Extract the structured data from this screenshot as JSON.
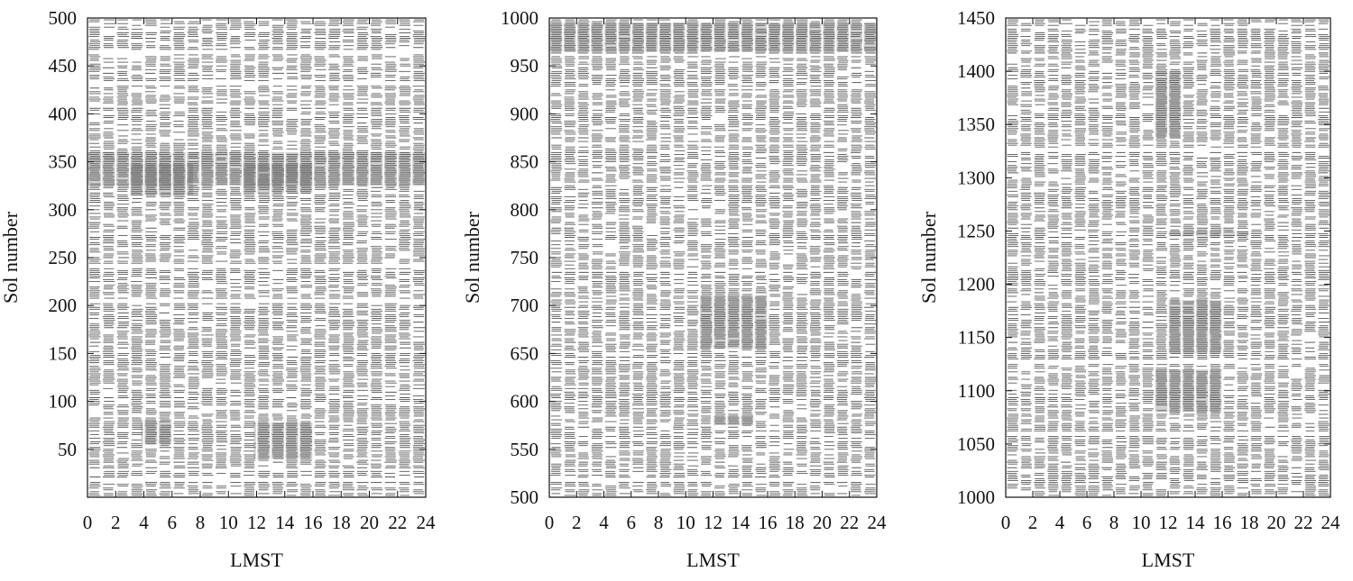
{
  "chart_data": [
    {
      "type": "heatmap",
      "xlabel": "LMST",
      "ylabel": "Sol number",
      "xlim": [
        0,
        24
      ],
      "ylim": [
        0,
        500
      ],
      "x_ticks": [
        0,
        2,
        4,
        6,
        8,
        10,
        12,
        14,
        16,
        18,
        20,
        22,
        24
      ],
      "y_ticks": [
        50,
        100,
        150,
        200,
        250,
        300,
        350,
        400,
        450,
        500
      ],
      "fill_color": "#000000",
      "data_gaps_sol": [
        [
          17,
          20
        ],
        [
          27,
          30
        ],
        [
          203,
          206
        ],
        [
          240,
          243
        ],
        [
          407,
          409
        ],
        [
          430,
          433
        ],
        [
          462,
          466
        ]
      ],
      "dense_coverage": [
        {
          "sol": [
            55,
            80
          ],
          "lmst": [
            3.8,
            6.0
          ]
        },
        {
          "sol": [
            40,
            78
          ],
          "lmst": [
            11.8,
            16.0
          ]
        },
        {
          "sol": [
            315,
            348
          ],
          "lmst": [
            3.0,
            7.5
          ]
        },
        {
          "sol": [
            318,
            348
          ],
          "lmst": [
            11.0,
            16.0
          ]
        },
        {
          "sol": [
            325,
            360
          ],
          "lmst": [
            0,
            24
          ]
        }
      ]
    },
    {
      "type": "heatmap",
      "xlabel": "LMST",
      "ylabel": "Sol number",
      "xlim": [
        0,
        24
      ],
      "ylim": [
        500,
        1000
      ],
      "x_ticks": [
        0,
        2,
        4,
        6,
        8,
        10,
        12,
        14,
        16,
        18,
        20,
        22,
        24
      ],
      "y_ticks": [
        500,
        550,
        600,
        650,
        700,
        750,
        800,
        850,
        900,
        950,
        1000
      ],
      "fill_color": "#000000",
      "data_gaps_sol": [
        [
          517,
          520
        ],
        [
          558,
          560
        ],
        [
          643,
          646
        ],
        [
          735,
          738
        ],
        [
          826,
          828
        ],
        [
          868,
          870
        ],
        [
          925,
          928
        ],
        [
          960,
          962
        ]
      ],
      "dense_coverage": [
        {
          "sol": [
            965,
            995
          ],
          "lmst": [
            0,
            24
          ]
        },
        {
          "sol": [
            655,
            710
          ],
          "lmst": [
            11.0,
            16.0
          ]
        },
        {
          "sol": [
            575,
            585
          ],
          "lmst": [
            12.0,
            15.0
          ]
        }
      ]
    },
    {
      "type": "heatmap",
      "xlabel": "LMST",
      "ylabel": "Sol number",
      "xlim": [
        0,
        24
      ],
      "ylim": [
        1000,
        1450
      ],
      "x_ticks": [
        0,
        2,
        4,
        6,
        8,
        10,
        12,
        14,
        16,
        18,
        20,
        22,
        24
      ],
      "y_ticks": [
        1000,
        1050,
        1100,
        1150,
        1200,
        1250,
        1300,
        1350,
        1400,
        1450
      ],
      "fill_color": "#000000",
      "data_gaps_sol": [
        [
          1058,
          1062
        ],
        [
          1126,
          1129
        ],
        [
          1196,
          1199
        ],
        [
          1325,
          1328
        ],
        [
          1440,
          1443
        ]
      ],
      "dense_coverage": [
        {
          "sol": [
            1338,
            1400
          ],
          "lmst": [
            11.0,
            13.0
          ]
        },
        {
          "sol": [
            1245,
            1250
          ],
          "lmst": [
            12.0,
            18.0
          ]
        },
        {
          "sol": [
            1135,
            1185
          ],
          "lmst": [
            12.0,
            16.0
          ]
        },
        {
          "sol": [
            1080,
            1120
          ],
          "lmst": [
            11.0,
            16.0
          ]
        }
      ]
    }
  ]
}
